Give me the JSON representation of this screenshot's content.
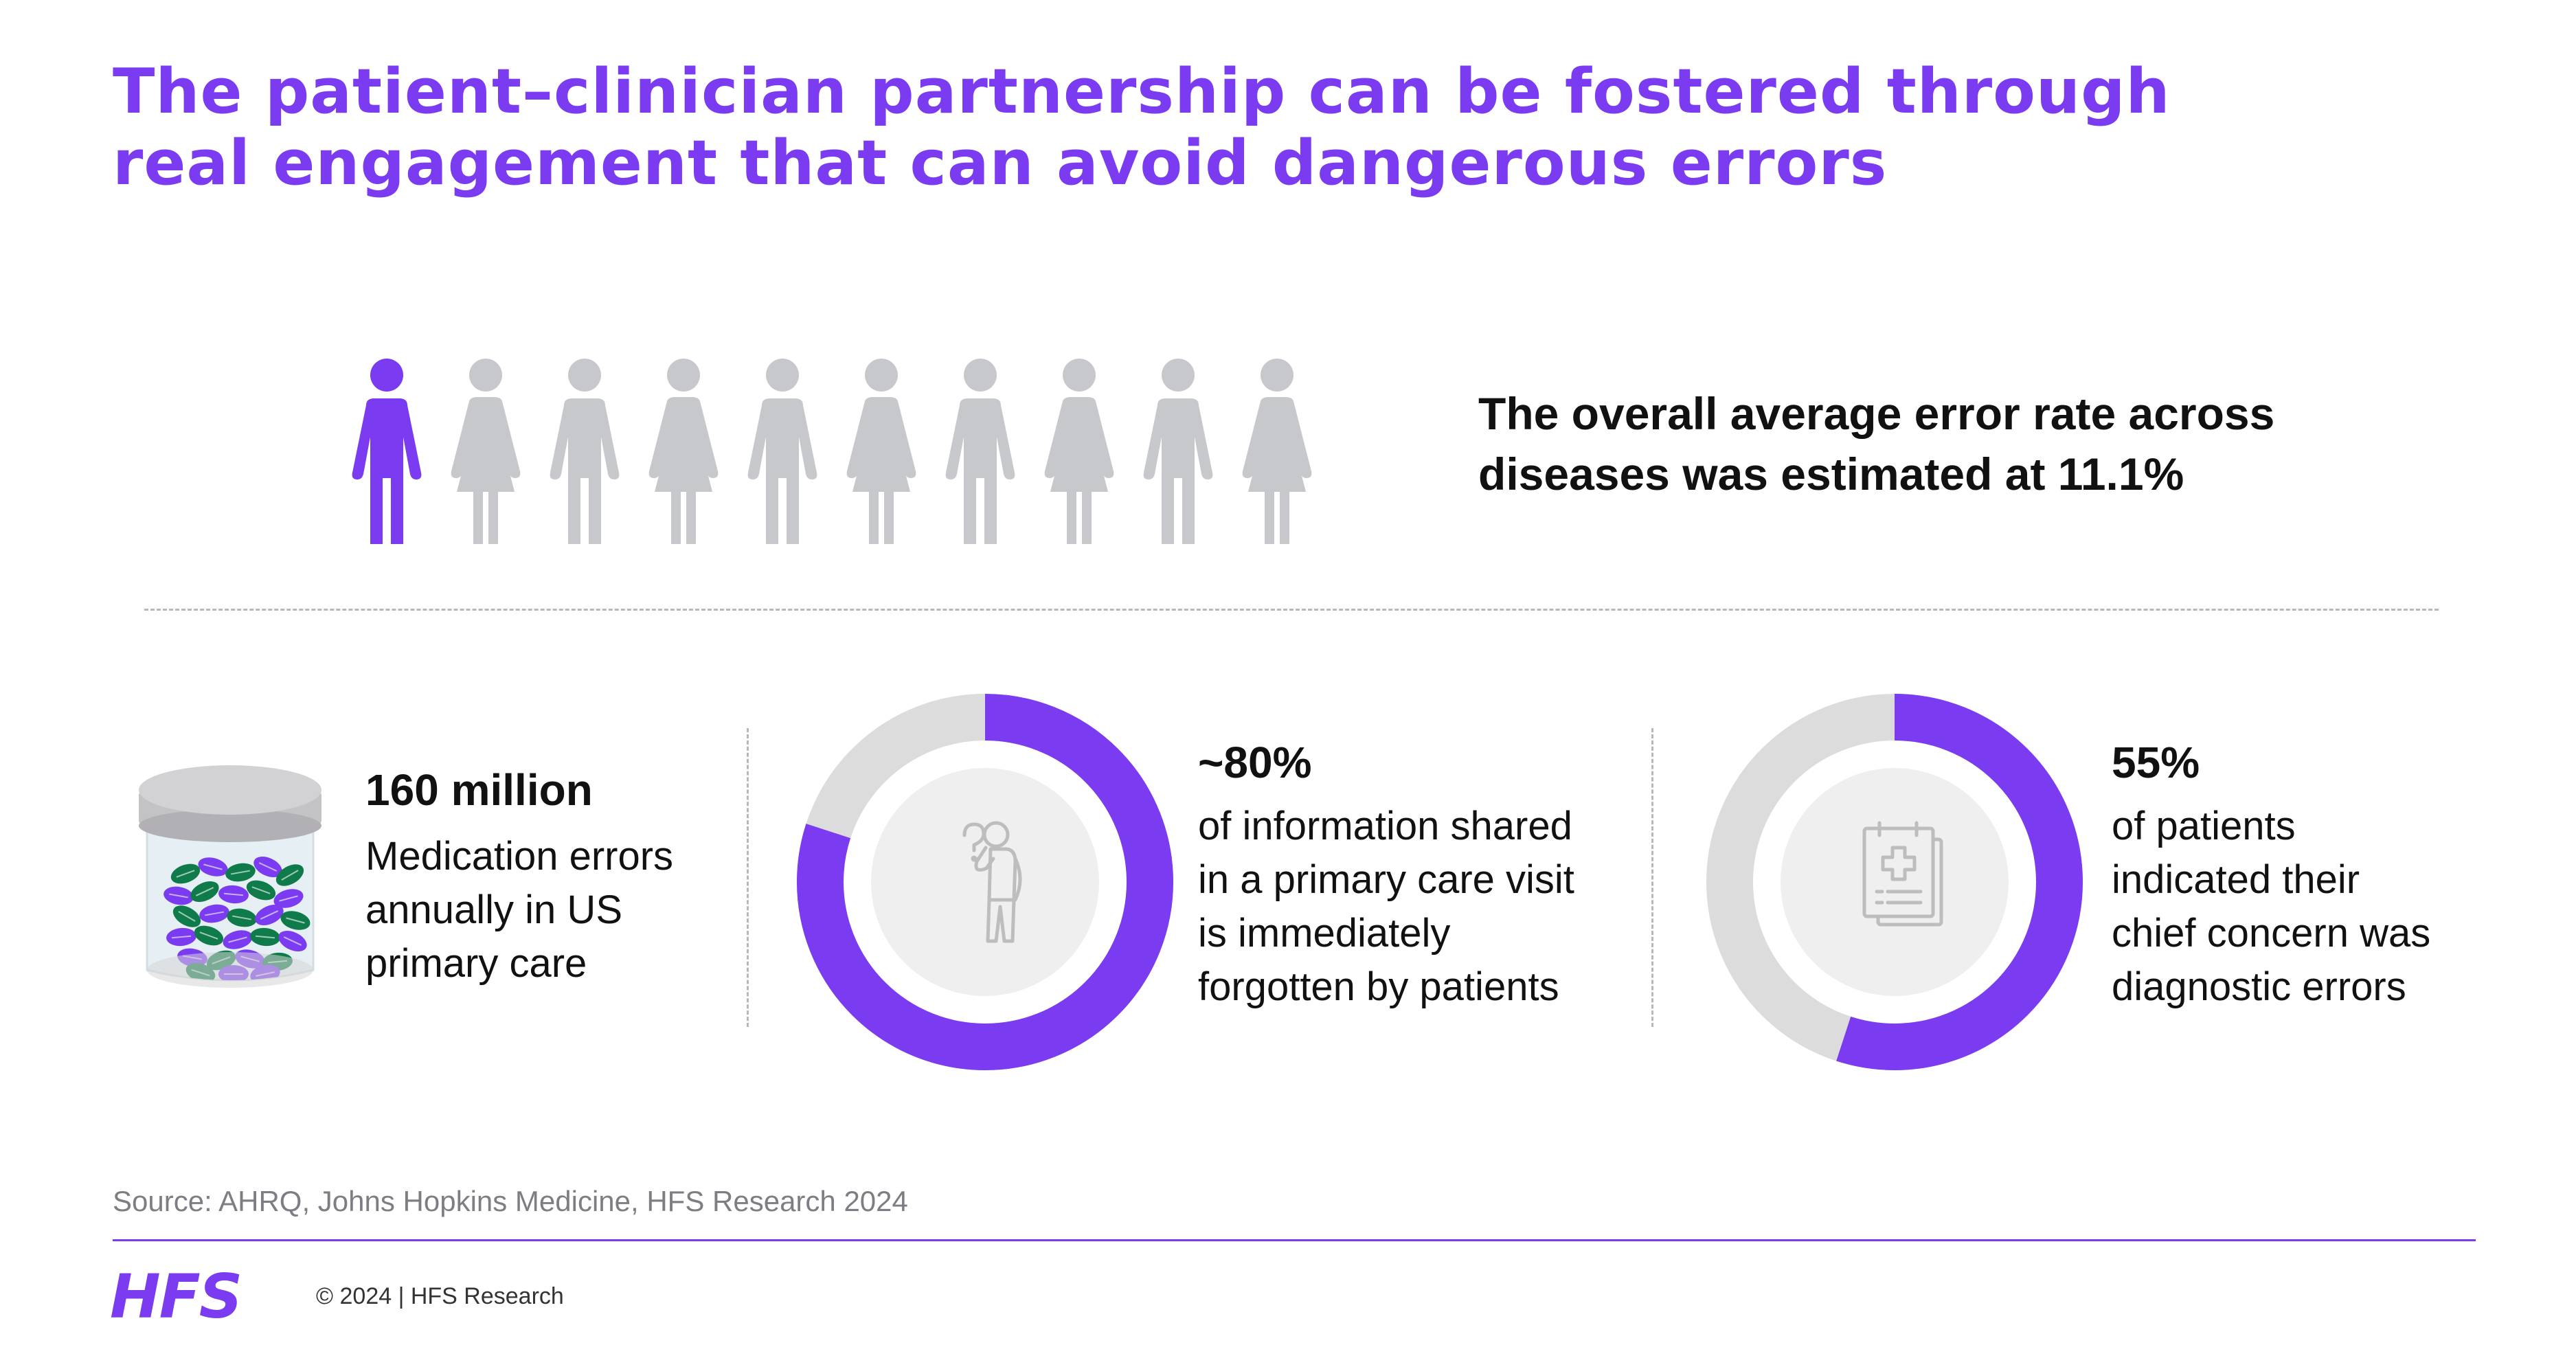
{
  "colors": {
    "accent": "#7a3bf1",
    "grey_figure": "#c7c8cc",
    "ring_track": "#dcdcdc",
    "inner_disc": "#efefef",
    "icon_grey": "#bdbdbd",
    "pill_green": "#0f7a4a"
  },
  "title": {
    "line1": "The patient–clinician partnership can be fostered through",
    "line2": "real engagement that can avoid dangerous errors"
  },
  "people": {
    "count": 10,
    "highlighted_fraction": 0.111,
    "sequence": [
      "male",
      "female",
      "male",
      "female",
      "male",
      "female",
      "male",
      "female",
      "male",
      "female"
    ]
  },
  "headline": {
    "line1": "The overall average error rate across",
    "line2": "diseases was estimated at 11.1%"
  },
  "stats": [
    {
      "value": "160 million",
      "lines": [
        "Medication errors",
        "annually in US",
        "primary care"
      ],
      "icon": "pill-jar-icon"
    },
    {
      "value": "~80%",
      "fraction": 0.8,
      "lines": [
        "of information shared",
        "in a primary care visit",
        "is immediately",
        "forgotten by patients"
      ],
      "icon": "confused-person-icon"
    },
    {
      "value": "55%",
      "fraction": 0.55,
      "lines": [
        "of patients",
        "indicated their",
        "chief concern was",
        "diagnostic errors"
      ],
      "icon": "medical-report-icon"
    }
  ],
  "source": "Source: AHRQ, Johns Hopkins Medicine, HFS Research 2024",
  "footer": {
    "logo": "HFS",
    "copyright": "© 2024 | HFS Research"
  }
}
